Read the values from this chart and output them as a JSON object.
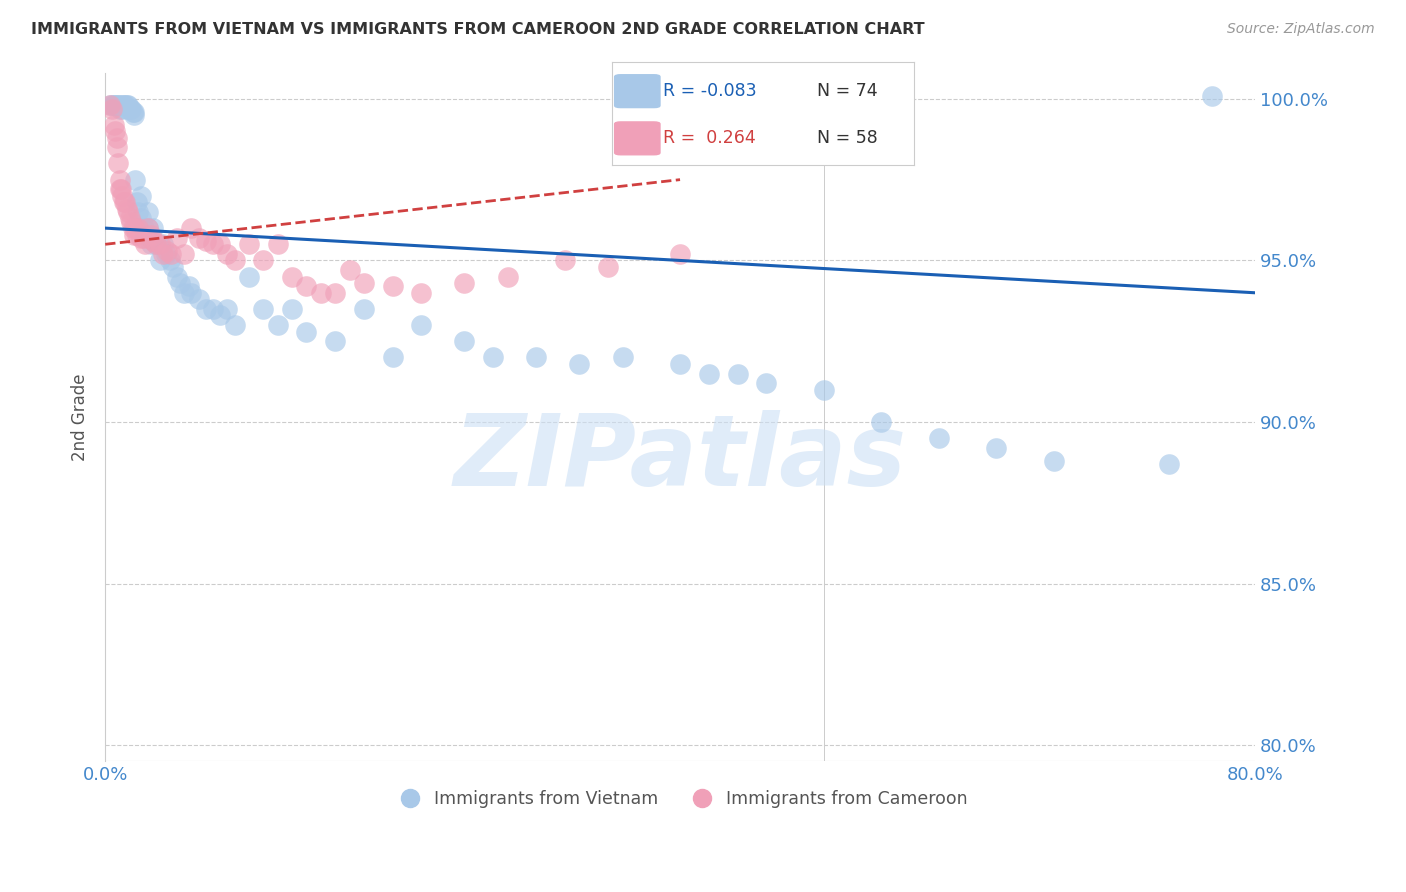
{
  "title": "IMMIGRANTS FROM VIETNAM VS IMMIGRANTS FROM CAMEROON 2ND GRADE CORRELATION CHART",
  "source": "Source: ZipAtlas.com",
  "ylabel": "2nd Grade",
  "xlim": [
    0.0,
    0.8
  ],
  "ylim": [
    0.795,
    1.008
  ],
  "yticks": [
    0.8,
    0.85,
    0.9,
    0.95,
    1.0
  ],
  "ytick_labels": [
    "80.0%",
    "85.0%",
    "90.0%",
    "95.0%",
    "100.0%"
  ],
  "background_color": "#ffffff",
  "watermark": "ZIPatlas",
  "legend_R_blue": "-0.083",
  "legend_N_blue": "74",
  "legend_R_pink": "0.264",
  "legend_N_pink": "58",
  "blue_color": "#a8c8e8",
  "pink_color": "#f0a0b8",
  "blue_line_color": "#1a5fb4",
  "pink_line_color": "#d04040",
  "axis_color": "#4488cc",
  "blue_scatter_x": [
    0.003,
    0.005,
    0.006,
    0.007,
    0.008,
    0.009,
    0.01,
    0.01,
    0.012,
    0.012,
    0.013,
    0.014,
    0.015,
    0.015,
    0.016,
    0.017,
    0.018,
    0.019,
    0.02,
    0.02,
    0.021,
    0.022,
    0.023,
    0.025,
    0.025,
    0.027,
    0.028,
    0.03,
    0.03,
    0.032,
    0.033,
    0.035,
    0.037,
    0.038,
    0.04,
    0.042,
    0.045,
    0.047,
    0.05,
    0.052,
    0.055,
    0.058,
    0.06,
    0.065,
    0.07,
    0.075,
    0.08,
    0.085,
    0.09,
    0.1,
    0.11,
    0.12,
    0.13,
    0.14,
    0.16,
    0.18,
    0.2,
    0.22,
    0.25,
    0.27,
    0.3,
    0.33,
    0.36,
    0.4,
    0.42,
    0.44,
    0.46,
    0.5,
    0.54,
    0.58,
    0.62,
    0.66,
    0.74,
    0.77
  ],
  "blue_scatter_y": [
    0.998,
    0.998,
    0.998,
    0.998,
    0.998,
    0.998,
    0.998,
    0.997,
    0.998,
    0.997,
    0.998,
    0.998,
    0.998,
    0.997,
    0.998,
    0.997,
    0.997,
    0.996,
    0.996,
    0.995,
    0.975,
    0.968,
    0.965,
    0.97,
    0.963,
    0.96,
    0.958,
    0.965,
    0.96,
    0.955,
    0.96,
    0.955,
    0.955,
    0.95,
    0.955,
    0.952,
    0.95,
    0.948,
    0.945,
    0.943,
    0.94,
    0.942,
    0.94,
    0.938,
    0.935,
    0.935,
    0.933,
    0.935,
    0.93,
    0.945,
    0.935,
    0.93,
    0.935,
    0.928,
    0.925,
    0.935,
    0.92,
    0.93,
    0.925,
    0.92,
    0.92,
    0.918,
    0.92,
    0.918,
    0.915,
    0.915,
    0.912,
    0.91,
    0.9,
    0.895,
    0.892,
    0.888,
    0.887,
    1.001
  ],
  "pink_scatter_x": [
    0.003,
    0.005,
    0.006,
    0.007,
    0.008,
    0.008,
    0.009,
    0.01,
    0.01,
    0.011,
    0.012,
    0.013,
    0.014,
    0.015,
    0.016,
    0.017,
    0.018,
    0.019,
    0.02,
    0.021,
    0.022,
    0.023,
    0.025,
    0.027,
    0.028,
    0.03,
    0.032,
    0.033,
    0.035,
    0.038,
    0.04,
    0.043,
    0.046,
    0.05,
    0.055,
    0.06,
    0.065,
    0.07,
    0.075,
    0.08,
    0.085,
    0.09,
    0.1,
    0.11,
    0.12,
    0.13,
    0.14,
    0.15,
    0.16,
    0.17,
    0.18,
    0.2,
    0.22,
    0.25,
    0.28,
    0.32,
    0.35,
    0.4
  ],
  "pink_scatter_y": [
    0.998,
    0.997,
    0.992,
    0.99,
    0.988,
    0.985,
    0.98,
    0.975,
    0.972,
    0.972,
    0.97,
    0.968,
    0.968,
    0.966,
    0.965,
    0.963,
    0.962,
    0.96,
    0.958,
    0.96,
    0.958,
    0.96,
    0.957,
    0.957,
    0.955,
    0.96,
    0.958,
    0.956,
    0.955,
    0.955,
    0.952,
    0.953,
    0.952,
    0.957,
    0.952,
    0.96,
    0.957,
    0.956,
    0.955,
    0.955,
    0.952,
    0.95,
    0.955,
    0.95,
    0.955,
    0.945,
    0.942,
    0.94,
    0.94,
    0.947,
    0.943,
    0.942,
    0.94,
    0.943,
    0.945,
    0.95,
    0.948,
    0.952
  ],
  "blue_trendline_x": [
    0.0,
    0.8
  ],
  "blue_trendline_y": [
    0.96,
    0.94
  ],
  "pink_trendline_x": [
    0.0,
    0.4
  ],
  "pink_trendline_y": [
    0.955,
    0.975
  ]
}
